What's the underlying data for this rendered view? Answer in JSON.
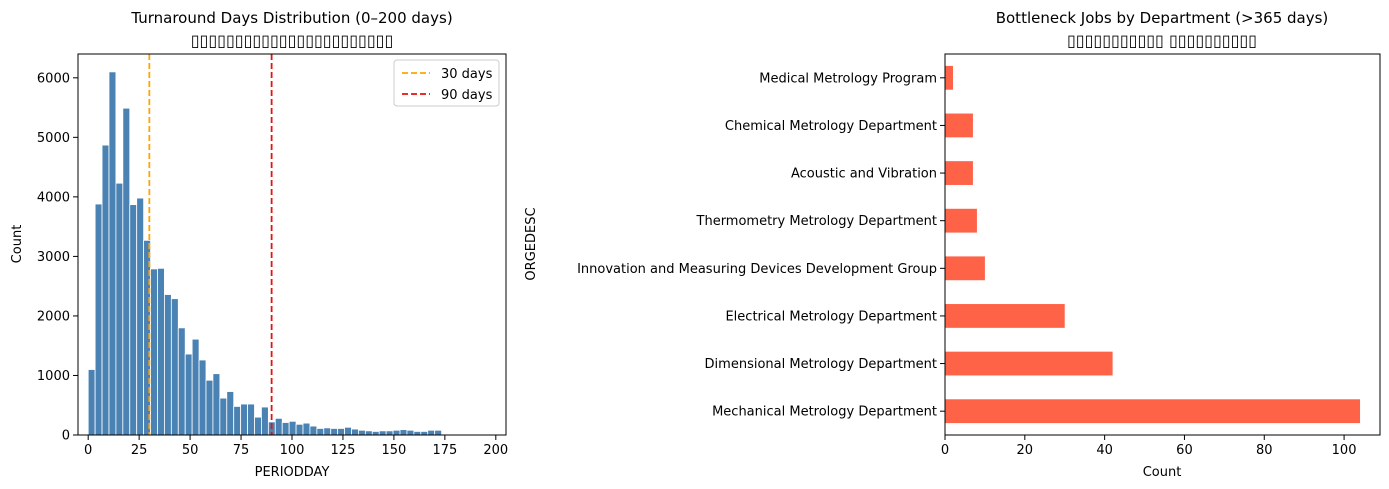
{
  "chart_data": [
    {
      "type": "bar",
      "title": "Turnaround Days Distribution (0–200 days)",
      "subtitle": "▯▯▯▯▯▯▯▯▯▯▯▯▯▯▯▯▯▯▯▯▯▯▯",
      "xlabel": "PERIODDAY",
      "ylabel": "Count",
      "xlim": [
        -5,
        205
      ],
      "ylim": [
        0,
        6400
      ],
      "xticks": [
        0,
        25,
        50,
        75,
        100,
        125,
        150,
        175,
        200
      ],
      "yticks": [
        0,
        1000,
        2000,
        3000,
        4000,
        5000,
        6000
      ],
      "bin_width": 3.4,
      "bin_start": 0,
      "values": [
        1100,
        3880,
        4870,
        6100,
        4230,
        5490,
        3870,
        3980,
        3270,
        2790,
        2800,
        2360,
        2290,
        1800,
        1360,
        1610,
        1260,
        920,
        1030,
        620,
        730,
        480,
        520,
        520,
        300,
        470,
        220,
        280,
        210,
        230,
        180,
        200,
        150,
        110,
        120,
        110,
        110,
        130,
        100,
        80,
        70,
        60,
        70,
        70,
        80,
        90,
        80,
        60,
        60,
        80,
        80
      ],
      "color": "#4a82b4",
      "vlines": [
        {
          "x": 30,
          "label": "30 days",
          "color": "#ffa500"
        },
        {
          "x": 90,
          "label": "90 days",
          "color": "#e8120c"
        }
      ],
      "legend": "top-right"
    },
    {
      "type": "barh",
      "title": "Bottleneck Jobs by Department (>365 days)",
      "subtitle": "▯▯▯▯▯▯▯▯▯▯▯ ▯▯▯▯▯▯▯▯▯▯",
      "xlabel": "Count",
      "ylabel": "ORGEDESC",
      "xlim": [
        0,
        109
      ],
      "xticks": [
        0,
        20,
        40,
        60,
        80,
        100
      ],
      "categories": [
        "Medical Metrology Program",
        "Chemical Metrology Department",
        "Acoustic and Vibration",
        "Thermometry Metrology Department",
        "Innovation and Measuring Devices Development Group",
        "Electrical Metrology Department",
        "Dimensional Metrology Department",
        "Mechanical Metrology Department"
      ],
      "values": [
        2,
        7,
        7,
        8,
        10,
        30,
        42,
        104
      ],
      "color": "#ff6347"
    }
  ]
}
